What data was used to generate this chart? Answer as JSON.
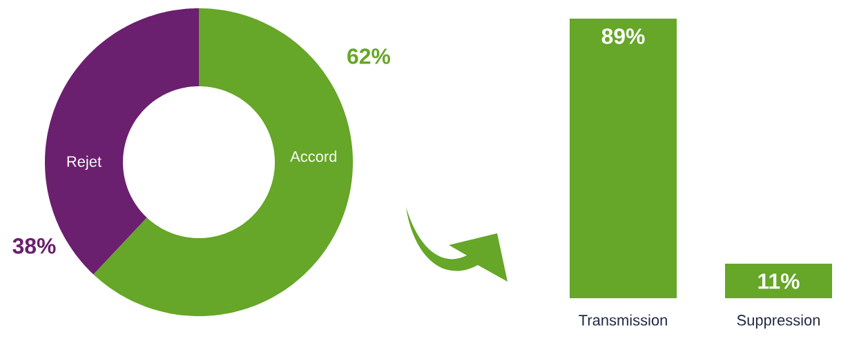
{
  "chart_data": [
    {
      "type": "donut",
      "categories": [
        "Accord",
        "Rejet"
      ],
      "values": [
        62,
        38
      ],
      "colors": [
        "#66a628",
        "#6b1f6f"
      ],
      "value_labels": [
        "62%",
        "38%"
      ]
    },
    {
      "type": "bar",
      "categories": [
        "Transmission",
        "Suppression"
      ],
      "values": [
        89,
        11
      ],
      "colors": [
        "#66a628",
        "#66a628"
      ],
      "value_labels": [
        "89%",
        "11%"
      ]
    }
  ]
}
